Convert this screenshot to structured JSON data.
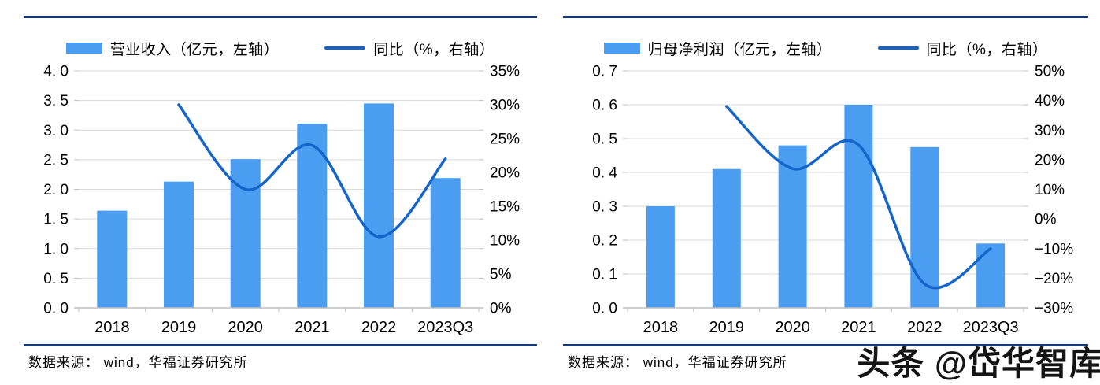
{
  "colors": {
    "bar": "#4B9DF2",
    "line": "#1565C8",
    "rule": "#17397E",
    "grid": "#D9D9D9",
    "axis": "#BFBFBF",
    "text": "#000000"
  },
  "watermark": {
    "text": "头条 @岱华智库"
  },
  "charts": [
    {
      "legend": [
        {
          "type": "bar",
          "label": "营业收入（亿元，左轴）"
        },
        {
          "type": "line",
          "label": "同比（%，右轴）"
        }
      ],
      "source_label": "数据来源：  wind，华福证券研究所",
      "chart_data": {
        "type": "bar+line",
        "categories": [
          "2018",
          "2019",
          "2020",
          "2021",
          "2022",
          "2023Q3"
        ],
        "series": [
          {
            "name": "营业收入（亿元，左轴）",
            "type": "bar",
            "axis": "left",
            "values": [
              1.64,
              2.13,
              2.51,
              3.11,
              3.45,
              2.19
            ]
          },
          {
            "name": "同比（%，右轴）",
            "type": "line",
            "axis": "right",
            "values": [
              null,
              30,
              17.5,
              24,
              10.5,
              22
            ]
          }
        ],
        "left_axis": {
          "min": 0,
          "max": 4,
          "tick_labels": [
            "0. 0",
            "0. 5",
            "1. 0",
            "1. 5",
            "2. 0",
            "2. 5",
            "3. 0",
            "3. 5",
            "4. 0"
          ]
        },
        "right_axis": {
          "min": 0,
          "max": 35,
          "tick_labels": [
            "0%",
            "5%",
            "10%",
            "15%",
            "20%",
            "25%",
            "30%",
            "35%"
          ]
        },
        "grid": true,
        "legend_position": "top"
      }
    },
    {
      "legend": [
        {
          "type": "bar",
          "label": "归母净利润（亿元，左轴）"
        },
        {
          "type": "line",
          "label": "同比（%，右轴）"
        }
      ],
      "source_label": "数据来源：  wind，华福证券研究所",
      "chart_data": {
        "type": "bar+line",
        "categories": [
          "2018",
          "2019",
          "2020",
          "2021",
          "2022",
          "2023Q3"
        ],
        "series": [
          {
            "name": "归母净利润（亿元，左轴）",
            "type": "bar",
            "axis": "left",
            "values": [
              0.3,
              0.41,
              0.48,
              0.6,
              0.475,
              0.19
            ]
          },
          {
            "name": "同比（%，右轴）",
            "type": "line",
            "axis": "right",
            "values": [
              null,
              38,
              17,
              25,
              -22,
              -10
            ]
          }
        ],
        "left_axis": {
          "min": 0,
          "max": 0.7,
          "tick_labels": [
            "0. 0",
            "0. 1",
            "0. 2",
            "0. 3",
            "0. 4",
            "0. 5",
            "0. 6",
            "0. 7"
          ]
        },
        "right_axis": {
          "min": -30,
          "max": 50,
          "tick_labels": [
            "−30%",
            "−20%",
            "−10%",
            "0%",
            "10%",
            "20%",
            "30%",
            "40%",
            "50%"
          ]
        },
        "grid": true,
        "legend_position": "top"
      }
    }
  ]
}
